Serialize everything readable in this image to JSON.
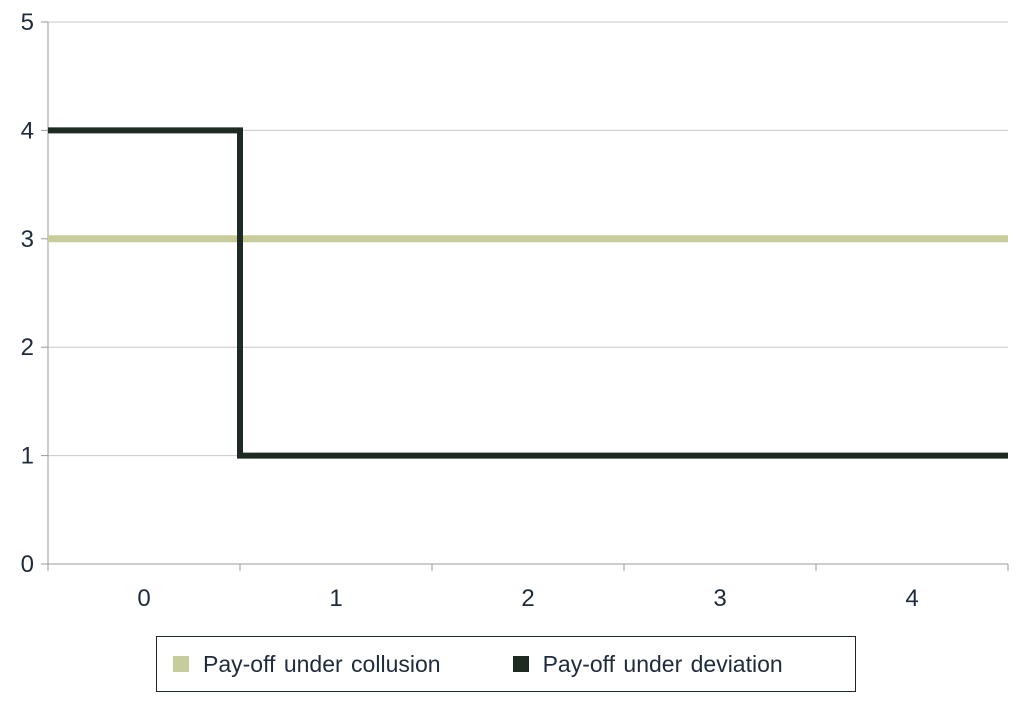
{
  "chart_data": {
    "type": "line",
    "title": "",
    "xlabel": "",
    "ylabel": "",
    "categories": [
      "0",
      "1",
      "2",
      "3",
      "4"
    ],
    "ylim": [
      0,
      5
    ],
    "y_ticks": [
      "0",
      "1",
      "2",
      "3",
      "4",
      "5"
    ],
    "grid": true,
    "legend_position": "bottom",
    "series": [
      {
        "name": "Pay-off under collusion",
        "color": "#c8cc9a",
        "step": false,
        "values": [
          3,
          3,
          3,
          3,
          3
        ]
      },
      {
        "name": "Pay-off under deviation",
        "color": "#1e2b22",
        "step": true,
        "values": [
          4,
          1,
          1,
          1,
          1
        ]
      }
    ]
  }
}
